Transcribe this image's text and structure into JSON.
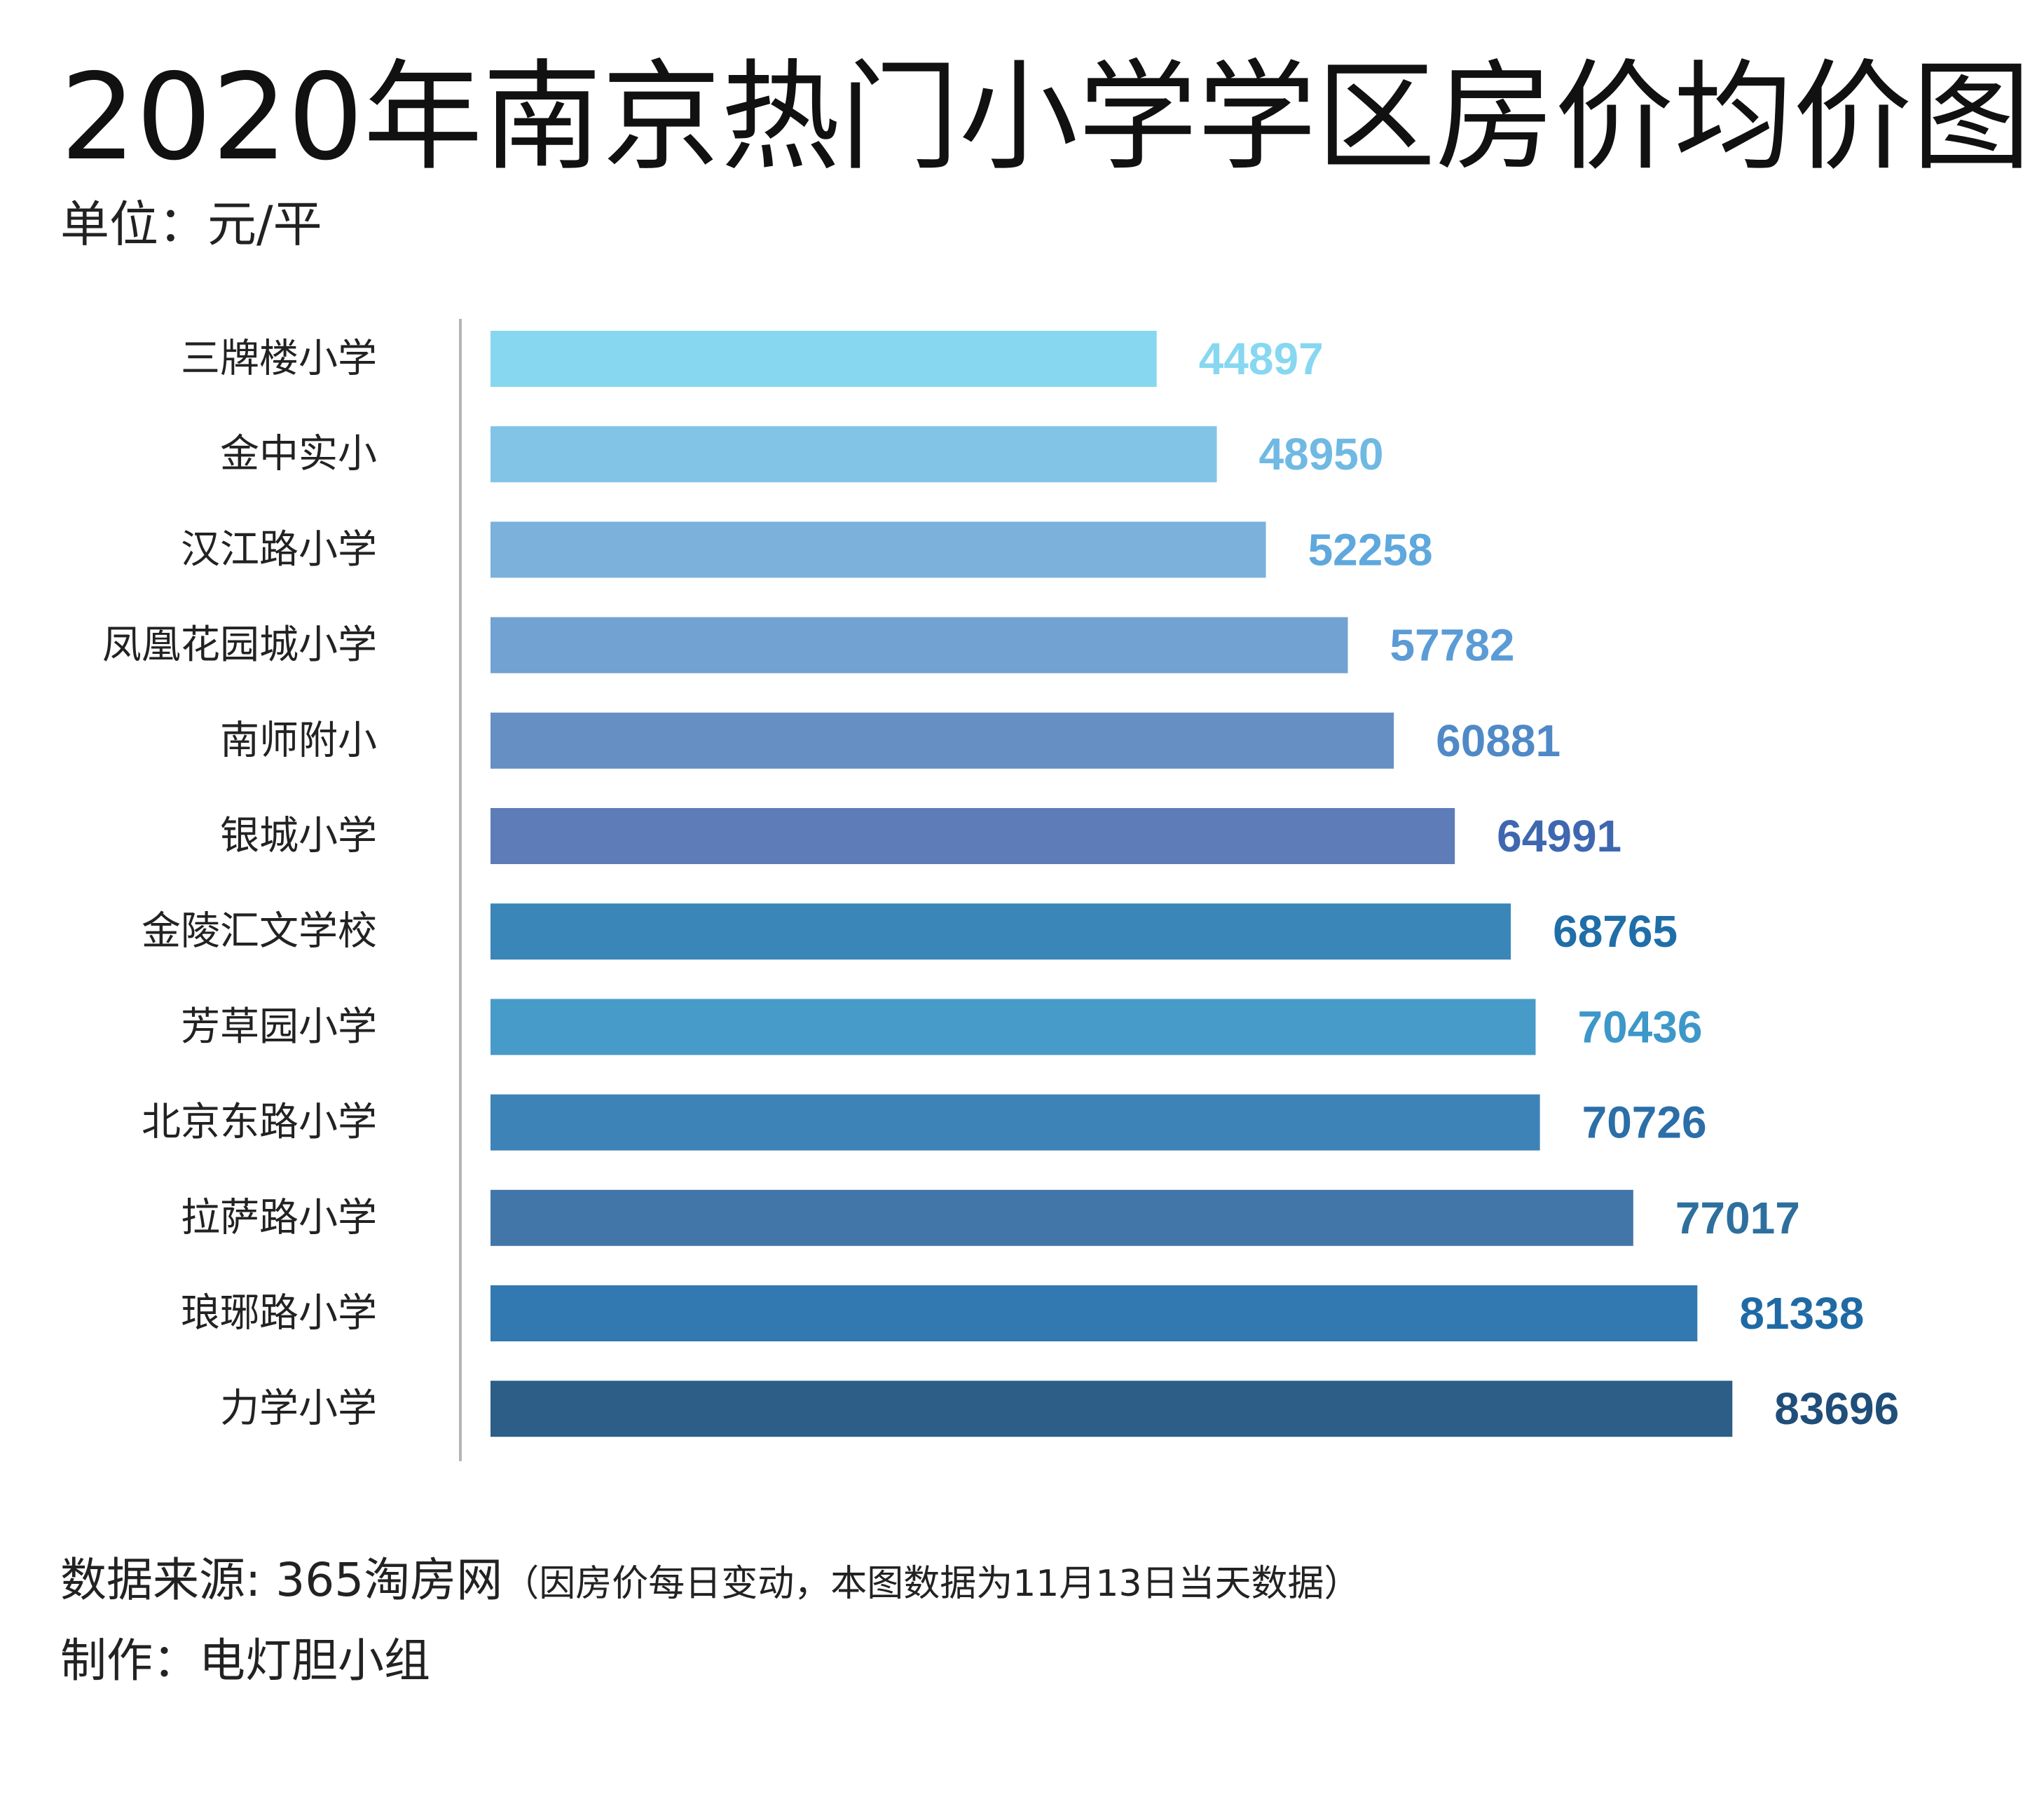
{
  "chart_data": {
    "type": "bar",
    "orientation": "horizontal",
    "title": "2020年南京热门小学学区房价均价图",
    "subtitle": "单位：元/平",
    "categories": [
      "三牌楼小学",
      "金中实小",
      "汉江路小学",
      "凤凰花园城小学",
      "南师附小",
      "银城小学",
      "金陵汇文学校",
      "芳草园小学",
      "北京东路小学",
      "拉萨路小学",
      "琅琊路小学",
      "力学小学"
    ],
    "values": [
      44897,
      48950,
      52258,
      57782,
      60881,
      64991,
      68765,
      70436,
      70726,
      77017,
      81338,
      83696
    ],
    "bar_colors": [
      "#87d7f1",
      "#82c4e6",
      "#7cb1db",
      "#71a2d1",
      "#6690c4",
      "#5d7cb8",
      "#3a86b8",
      "#479bc8",
      "#3e83b8",
      "#4276a8",
      "#3179b0",
      "#2c5e87"
    ],
    "label_colors": [
      "#87d7f1",
      "#6fb9e3",
      "#5ea8dd",
      "#5b9bd6",
      "#4f89c7",
      "#3f67b0",
      "#1f6ea8",
      "#3d97c9",
      "#2b6ea8",
      "#2e6f9e",
      "#1f6aa5",
      "#1f4e79"
    ],
    "xlim": [
      0,
      90000
    ],
    "grid": false,
    "legend": "none"
  },
  "footer": {
    "source_main": "数据来源: 365淘房网",
    "source_note": "（因房价每日变动，本图数据为11月13日当天数据）",
    "credit": "制作：电灯胆小组"
  }
}
